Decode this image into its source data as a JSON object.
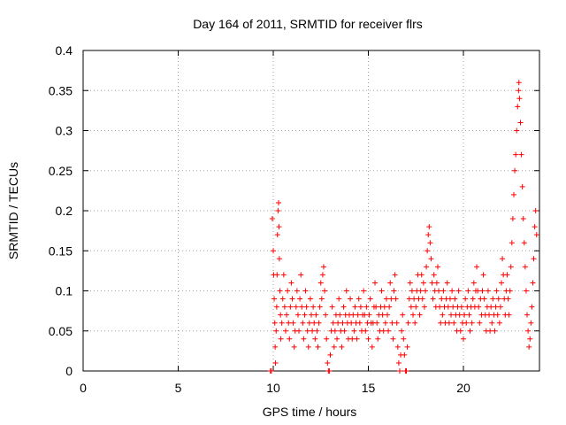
{
  "chart_data": {
    "type": "scatter",
    "title": "Day 164 of 2011, SRMTID for receiver flrs",
    "xlabel": "GPS time / hours",
    "ylabel": "SRMTID / TECUs",
    "xlim": [
      0,
      24
    ],
    "ylim": [
      0,
      0.4
    ],
    "x_ticks": [
      0,
      5,
      10,
      15,
      20
    ],
    "x_tick_labels": [
      "0",
      "5",
      "10",
      "15",
      "20"
    ],
    "y_ticks": [
      0,
      0.05,
      0.1,
      0.15,
      0.2,
      0.25,
      0.3,
      0.35,
      0.4
    ],
    "y_tick_labels": [
      "0",
      "0.05",
      "0.1",
      "0.15",
      "0.2",
      "0.25",
      "0.3",
      "0.35",
      "0.4"
    ],
    "grid": true,
    "marker": "plus",
    "colors": {
      "series": "#ff0000",
      "grid": "#a0a0a0",
      "frame": "#000000"
    },
    "series": [
      {
        "points": [
          [
            9.85,
            0.0
          ],
          [
            9.9,
            0.0
          ],
          [
            9.95,
            0.19
          ],
          [
            10.0,
            0.15
          ],
          [
            10.02,
            0.12
          ],
          [
            10.05,
            0.09
          ],
          [
            10.08,
            0.06
          ],
          [
            10.1,
            0.03
          ],
          [
            10.12,
            0.01
          ],
          [
            10.15,
            0.05
          ],
          [
            10.18,
            0.08
          ],
          [
            10.2,
            0.12
          ],
          [
            10.22,
            0.17
          ],
          [
            10.25,
            0.2
          ],
          [
            10.28,
            0.21
          ],
          [
            10.3,
            0.18
          ],
          [
            10.32,
            0.14
          ],
          [
            10.35,
            0.1
          ],
          [
            10.38,
            0.07
          ],
          [
            10.4,
            0.04
          ],
          [
            10.45,
            0.06
          ],
          [
            10.5,
            0.09
          ],
          [
            10.55,
            0.12
          ],
          [
            10.6,
            0.08
          ],
          [
            10.65,
            0.05
          ],
          [
            10.7,
            0.07
          ],
          [
            10.75,
            0.1
          ],
          [
            10.8,
            0.06
          ],
          [
            10.85,
            0.04
          ],
          [
            10.9,
            0.08
          ],
          [
            10.95,
            0.11
          ],
          [
            11.0,
            0.09
          ],
          [
            11.05,
            0.06
          ],
          [
            11.1,
            0.03
          ],
          [
            11.15,
            0.05
          ],
          [
            11.2,
            0.08
          ],
          [
            11.25,
            0.1
          ],
          [
            11.3,
            0.07
          ],
          [
            11.35,
            0.05
          ],
          [
            11.4,
            0.09
          ],
          [
            11.45,
            0.12
          ],
          [
            11.5,
            0.08
          ],
          [
            11.55,
            0.06
          ],
          [
            11.6,
            0.04
          ],
          [
            11.65,
            0.07
          ],
          [
            11.7,
            0.1
          ],
          [
            11.75,
            0.08
          ],
          [
            11.8,
            0.05
          ],
          [
            11.85,
            0.03
          ],
          [
            11.9,
            0.06
          ],
          [
            11.95,
            0.09
          ],
          [
            12.0,
            0.07
          ],
          [
            12.05,
            0.05
          ],
          [
            12.1,
            0.08
          ],
          [
            12.15,
            0.06
          ],
          [
            12.2,
            0.04
          ],
          [
            12.25,
            0.07
          ],
          [
            12.3,
            0.05
          ],
          [
            12.35,
            0.03
          ],
          [
            12.4,
            0.06
          ],
          [
            12.45,
            0.08
          ],
          [
            12.5,
            0.11
          ],
          [
            12.55,
            0.09
          ],
          [
            12.6,
            0.12
          ],
          [
            12.65,
            0.13
          ],
          [
            12.7,
            0.1
          ],
          [
            12.75,
            0.07
          ],
          [
            12.8,
            0.04
          ],
          [
            12.85,
            0.01
          ],
          [
            12.9,
            0.0
          ],
          [
            12.95,
            0.0
          ],
          [
            13.0,
            0.02
          ],
          [
            13.05,
            0.05
          ],
          [
            13.1,
            0.08
          ],
          [
            13.15,
            0.06
          ],
          [
            13.2,
            0.03
          ],
          [
            13.25,
            0.05
          ],
          [
            13.3,
            0.07
          ],
          [
            13.35,
            0.04
          ],
          [
            13.4,
            0.06
          ],
          [
            13.45,
            0.09
          ],
          [
            13.5,
            0.07
          ],
          [
            13.55,
            0.05
          ],
          [
            13.6,
            0.03
          ],
          [
            13.65,
            0.06
          ],
          [
            13.7,
            0.08
          ],
          [
            13.75,
            0.05
          ],
          [
            13.8,
            0.07
          ],
          [
            13.85,
            0.1
          ],
          [
            13.9,
            0.06
          ],
          [
            13.95,
            0.04
          ],
          [
            14.0,
            0.07
          ],
          [
            14.05,
            0.09
          ],
          [
            14.1,
            0.06
          ],
          [
            14.15,
            0.04
          ],
          [
            14.2,
            0.07
          ],
          [
            14.25,
            0.05
          ],
          [
            14.3,
            0.08
          ],
          [
            14.35,
            0.06
          ],
          [
            14.4,
            0.04
          ],
          [
            14.45,
            0.07
          ],
          [
            14.5,
            0.09
          ],
          [
            14.55,
            0.06
          ],
          [
            14.6,
            0.08
          ],
          [
            14.65,
            0.05
          ],
          [
            14.7,
            0.07
          ],
          [
            14.75,
            0.1
          ],
          [
            14.8,
            0.07
          ],
          [
            14.85,
            0.05
          ],
          [
            14.9,
            0.08
          ],
          [
            14.95,
            0.06
          ],
          [
            15.0,
            0.04
          ],
          [
            15.05,
            0.07
          ],
          [
            15.1,
            0.09
          ],
          [
            15.15,
            0.06
          ],
          [
            15.2,
            0.03
          ],
          [
            15.25,
            0.06
          ],
          [
            15.3,
            0.08
          ],
          [
            15.35,
            0.11
          ],
          [
            15.4,
            0.08
          ],
          [
            15.45,
            0.06
          ],
          [
            15.5,
            0.04
          ],
          [
            15.55,
            0.07
          ],
          [
            15.6,
            0.05
          ],
          [
            15.65,
            0.08
          ],
          [
            15.7,
            0.1
          ],
          [
            15.75,
            0.07
          ],
          [
            15.8,
            0.05
          ],
          [
            15.85,
            0.08
          ],
          [
            15.9,
            0.06
          ],
          [
            15.95,
            0.09
          ],
          [
            16.0,
            0.07
          ],
          [
            16.05,
            0.05
          ],
          [
            16.1,
            0.08
          ],
          [
            16.15,
            0.11
          ],
          [
            16.2,
            0.09
          ],
          [
            16.25,
            0.06
          ],
          [
            16.3,
            0.04
          ],
          [
            16.35,
            0.1
          ],
          [
            16.4,
            0.12
          ],
          [
            16.45,
            0.09
          ],
          [
            16.5,
            0.06
          ],
          [
            16.55,
            0.03
          ],
          [
            16.6,
            0.01
          ],
          [
            16.65,
            0.0
          ],
          [
            16.7,
            0.02
          ],
          [
            16.75,
            0.05
          ],
          [
            16.8,
            0.07
          ],
          [
            16.85,
            0.04
          ],
          [
            16.9,
            0.02
          ],
          [
            16.95,
            0.0
          ],
          [
            17.0,
            0.0
          ],
          [
            17.05,
            0.03
          ],
          [
            17.1,
            0.06
          ],
          [
            17.15,
            0.09
          ],
          [
            17.2,
            0.11
          ],
          [
            17.25,
            0.08
          ],
          [
            17.3,
            0.1
          ],
          [
            17.35,
            0.07
          ],
          [
            17.4,
            0.09
          ],
          [
            17.45,
            0.06
          ],
          [
            17.5,
            0.08
          ],
          [
            17.55,
            0.1
          ],
          [
            17.6,
            0.12
          ],
          [
            17.65,
            0.09
          ],
          [
            17.7,
            0.07
          ],
          [
            17.75,
            0.1
          ],
          [
            17.8,
            0.12
          ],
          [
            17.85,
            0.09
          ],
          [
            17.9,
            0.11
          ],
          [
            17.95,
            0.08
          ],
          [
            18.0,
            0.1
          ],
          [
            18.05,
            0.13
          ],
          [
            18.1,
            0.15
          ],
          [
            18.15,
            0.17
          ],
          [
            18.2,
            0.18
          ],
          [
            18.25,
            0.16
          ],
          [
            18.3,
            0.14
          ],
          [
            18.35,
            0.11
          ],
          [
            18.4,
            0.09
          ],
          [
            18.45,
            0.12
          ],
          [
            18.5,
            0.1
          ],
          [
            18.55,
            0.08
          ],
          [
            18.6,
            0.11
          ],
          [
            18.65,
            0.13
          ],
          [
            18.7,
            0.1
          ],
          [
            18.75,
            0.08
          ],
          [
            18.8,
            0.06
          ],
          [
            18.85,
            0.09
          ],
          [
            18.9,
            0.07
          ],
          [
            18.95,
            0.1
          ],
          [
            19.0,
            0.08
          ],
          [
            19.05,
            0.06
          ],
          [
            19.1,
            0.09
          ],
          [
            19.15,
            0.11
          ],
          [
            19.2,
            0.08
          ],
          [
            19.25,
            0.06
          ],
          [
            19.3,
            0.09
          ],
          [
            19.35,
            0.07
          ],
          [
            19.4,
            0.1
          ],
          [
            19.45,
            0.08
          ],
          [
            19.5,
            0.06
          ],
          [
            19.55,
            0.09
          ],
          [
            19.6,
            0.07
          ],
          [
            19.65,
            0.05
          ],
          [
            19.7,
            0.08
          ],
          [
            19.75,
            0.1
          ],
          [
            19.8,
            0.07
          ],
          [
            19.85,
            0.05
          ],
          [
            19.9,
            0.08
          ],
          [
            19.95,
            0.06
          ],
          [
            20.0,
            0.04
          ],
          [
            20.05,
            0.07
          ],
          [
            20.1,
            0.09
          ],
          [
            20.15,
            0.06
          ],
          [
            20.2,
            0.08
          ],
          [
            20.25,
            0.1
          ],
          [
            20.3,
            0.07
          ],
          [
            20.35,
            0.05
          ],
          [
            20.4,
            0.08
          ],
          [
            20.45,
            0.06
          ],
          [
            20.5,
            0.09
          ],
          [
            20.55,
            0.11
          ],
          [
            20.6,
            0.08
          ],
          [
            20.65,
            0.1
          ],
          [
            20.7,
            0.13
          ],
          [
            20.75,
            0.1
          ],
          [
            20.8,
            0.08
          ],
          [
            20.85,
            0.06
          ],
          [
            20.9,
            0.09
          ],
          [
            20.95,
            0.07
          ],
          [
            21.0,
            0.1
          ],
          [
            21.05,
            0.12
          ],
          [
            21.1,
            0.09
          ],
          [
            21.15,
            0.07
          ],
          [
            21.2,
            0.05
          ],
          [
            21.25,
            0.08
          ],
          [
            21.3,
            0.1
          ],
          [
            21.35,
            0.07
          ],
          [
            21.4,
            0.05
          ],
          [
            21.45,
            0.08
          ],
          [
            21.5,
            0.06
          ],
          [
            21.55,
            0.09
          ],
          [
            21.6,
            0.07
          ],
          [
            21.65,
            0.05
          ],
          [
            21.7,
            0.08
          ],
          [
            21.75,
            0.1
          ],
          [
            21.8,
            0.07
          ],
          [
            21.85,
            0.09
          ],
          [
            21.9,
            0.06
          ],
          [
            21.95,
            0.08
          ],
          [
            22.0,
            0.11
          ],
          [
            22.05,
            0.14
          ],
          [
            22.1,
            0.12
          ],
          [
            22.15,
            0.09
          ],
          [
            22.2,
            0.07
          ],
          [
            22.25,
            0.1
          ],
          [
            22.3,
            0.12
          ],
          [
            22.35,
            0.09
          ],
          [
            22.4,
            0.07
          ],
          [
            22.45,
            0.1
          ],
          [
            22.5,
            0.13
          ],
          [
            22.55,
            0.16
          ],
          [
            22.6,
            0.19
          ],
          [
            22.65,
            0.22
          ],
          [
            22.7,
            0.25
          ],
          [
            22.75,
            0.27
          ],
          [
            22.8,
            0.3
          ],
          [
            22.85,
            0.33
          ],
          [
            22.9,
            0.35
          ],
          [
            22.92,
            0.36
          ],
          [
            22.95,
            0.34
          ],
          [
            23.0,
            0.31
          ],
          [
            23.05,
            0.27
          ],
          [
            23.1,
            0.23
          ],
          [
            23.15,
            0.19
          ],
          [
            23.2,
            0.16
          ],
          [
            23.25,
            0.13
          ],
          [
            23.3,
            0.1
          ],
          [
            23.35,
            0.07
          ],
          [
            23.4,
            0.05
          ],
          [
            23.45,
            0.03
          ],
          [
            23.5,
            0.04
          ],
          [
            23.55,
            0.06
          ],
          [
            23.6,
            0.08
          ],
          [
            23.65,
            0.11
          ],
          [
            23.7,
            0.14
          ],
          [
            23.75,
            0.18
          ],
          [
            23.8,
            0.2
          ],
          [
            23.85,
            0.17
          ]
        ]
      }
    ]
  }
}
